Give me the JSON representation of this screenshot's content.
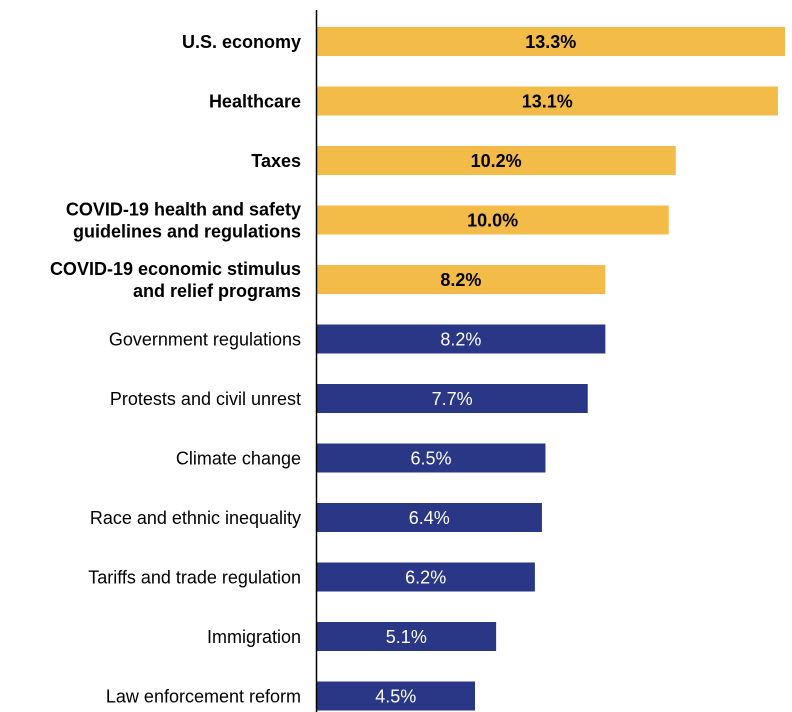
{
  "chart_data": {
    "type": "bar",
    "orientation": "horizontal",
    "categories": [
      [
        "U.S. economy"
      ],
      [
        "Healthcare"
      ],
      [
        "Taxes"
      ],
      [
        "COVID-19 health and safety",
        "guidelines and regulations"
      ],
      [
        "COVID-19 economic stimulus",
        "and relief programs"
      ],
      [
        "Government regulations"
      ],
      [
        "Protests and civil unrest"
      ],
      [
        "Climate change"
      ],
      [
        "Race and ethnic inequality"
      ],
      [
        "Tariffs and trade regulation"
      ],
      [
        "Immigration"
      ],
      [
        "Law enforcement reform"
      ]
    ],
    "values": [
      13.3,
      13.1,
      10.2,
      10.0,
      8.2,
      8.2,
      7.7,
      6.5,
      6.4,
      6.2,
      5.1,
      4.5
    ],
    "value_labels": [
      "13.3%",
      "13.1%",
      "10.2%",
      "10.0%",
      "8.2%",
      "8.2%",
      "7.7%",
      "6.5%",
      "6.4%",
      "6.2%",
      "5.1%",
      "4.5%"
    ],
    "highlighted": [
      true,
      true,
      true,
      true,
      true,
      false,
      false,
      false,
      false,
      false,
      false,
      false
    ],
    "xlim": [
      0,
      13.3
    ],
    "grid": false,
    "legend": "none"
  },
  "colors": {
    "highlight_bar": "#F3BC48",
    "default_bar": "#293786",
    "highlight_label": "#000000",
    "default_label": "#ffffff",
    "category_text": "#000000",
    "axis": "#000000"
  }
}
